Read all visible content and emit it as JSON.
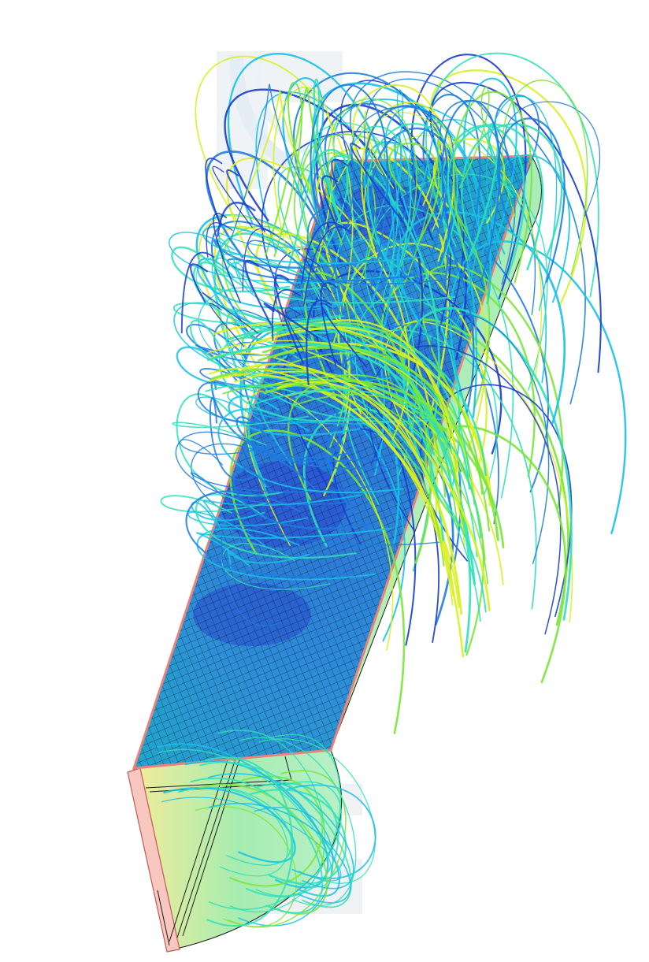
{
  "scene": {
    "subject": "",
    "colormap": [
      "#1a3ccf",
      "#1e7de0",
      "#17c1e6",
      "#2fe0b8",
      "#7ae63a",
      "#d9ef22"
    ],
    "housing_outline_color": "#e8827a",
    "mesh_color": "#1a1a1a",
    "housing_fill_light": "#b8f0b0",
    "housing_fill_warm": "#e6f3a0",
    "end_cap_color": "#f7c7c0",
    "watermark_color": "#e9eef3"
  }
}
